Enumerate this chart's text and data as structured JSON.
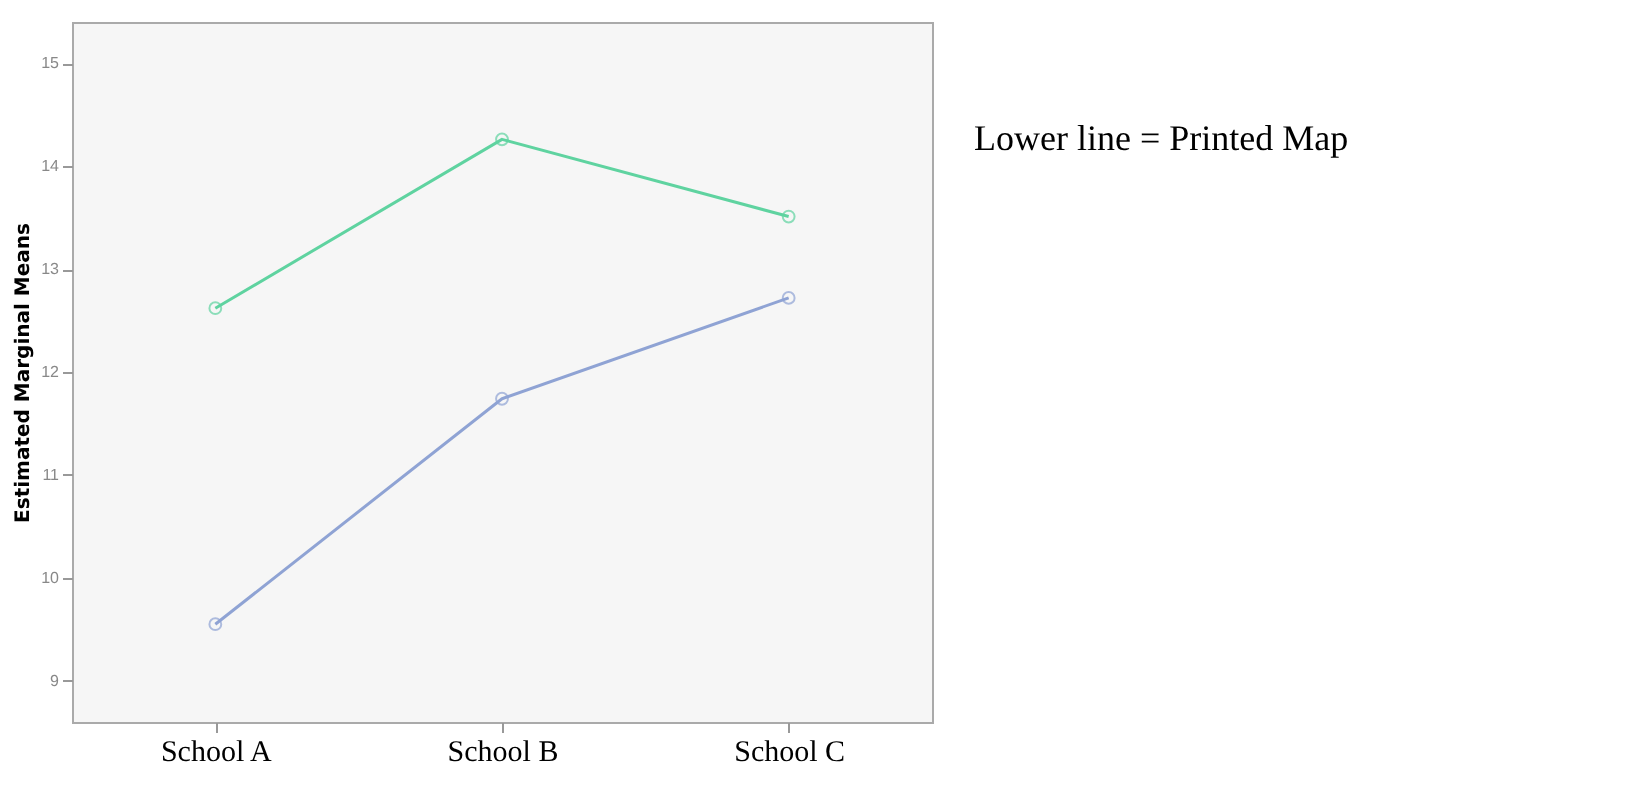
{
  "chart_data": {
    "type": "line",
    "ylabel": "Estimated Marginal Means",
    "categories": [
      "School A",
      "School B",
      "School C"
    ],
    "series": [
      {
        "color": "#5fd3a0",
        "values": [
          12.62,
          14.26,
          13.51
        ]
      },
      {
        "color": "#8fa3d4",
        "values": [
          9.55,
          11.74,
          12.72
        ]
      }
    ],
    "ylim": [
      8.6,
      15.4
    ],
    "yticks": [
      9,
      10,
      11,
      12,
      13,
      14,
      15
    ],
    "grid": false,
    "legend": false,
    "marker": "circle",
    "line_style": "solid",
    "annotations": [
      "Lower line = Printed Map"
    ]
  }
}
